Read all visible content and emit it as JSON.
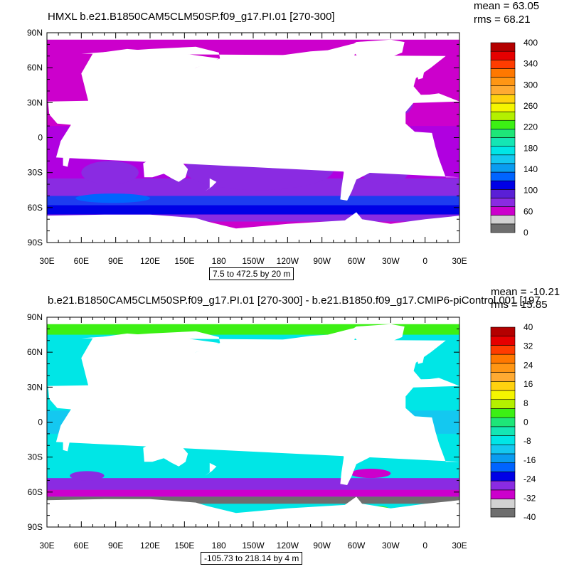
{
  "panels": [
    {
      "title": "HMXL b.e21.B1850CAM5CLM50SP.f09_g17.PI.01 [270-300]",
      "mean": "mean = 63.05",
      "rms": "rms = 68.21",
      "contour_info": "7.5 to 472.5 by 20 m",
      "lat_labels": [
        "90N",
        "60N",
        "30N",
        "0",
        "30S",
        "60S",
        "90S"
      ],
      "lon_labels": [
        "30E",
        "60E",
        "90E",
        "120E",
        "150E",
        "180",
        "150W",
        "120W",
        "90W",
        "60W",
        "30W",
        "0",
        "30E"
      ],
      "colorbar": {
        "colors": [
          "#6e6e6e",
          "#d2d2d2",
          "#cc00cc",
          "#8a2be2",
          "#5a1fd6",
          "#0000e6",
          "#0064ff",
          "#0a9cf0",
          "#14c8f0",
          "#00e6e6",
          "#14e6b4",
          "#1ee678",
          "#3cf014",
          "#b4f000",
          "#f5f500",
          "#ffd20f",
          "#ffaa32",
          "#ff9614",
          "#ff7800",
          "#ff3c00",
          "#e60000",
          "#b40000"
        ],
        "labels": [
          "0",
          "60",
          "100",
          "140",
          "180",
          "220",
          "260",
          "300",
          "340",
          "400"
        ]
      }
    },
    {
      "title": "b.e21.B1850CAM5CLM50SP.f09_g17.PI.01 [270-300] - b.e21.B1850.f09_g17.CMIP6-piControl.001 [197",
      "mean": "mean = -10.21",
      "rms": "rms = 15.85",
      "contour_info": "-105.73 to 218.14 by 4 m",
      "lat_labels": [
        "90N",
        "60N",
        "30N",
        "0",
        "30S",
        "60S",
        "90S"
      ],
      "lon_labels": [
        "30E",
        "60E",
        "90E",
        "120E",
        "150E",
        "180",
        "150W",
        "120W",
        "90W",
        "60W",
        "30W",
        "0",
        "30E"
      ],
      "colorbar": {
        "colors": [
          "#6e6e6e",
          "#d2d2d2",
          "#cc00cc",
          "#8a2be2",
          "#0000e6",
          "#0064ff",
          "#0a9cf0",
          "#14c8f0",
          "#00e6e6",
          "#14e6b4",
          "#1ee678",
          "#3cf014",
          "#b4f000",
          "#f5f500",
          "#ffd20f",
          "#ffaa32",
          "#ff9614",
          "#ff7800",
          "#ff3c00",
          "#e60000",
          "#b40000"
        ],
        "labels": [
          "-40",
          "-32",
          "-24",
          "-16",
          "-8",
          "0",
          "8",
          "16",
          "24",
          "32",
          "40"
        ]
      }
    }
  ]
}
